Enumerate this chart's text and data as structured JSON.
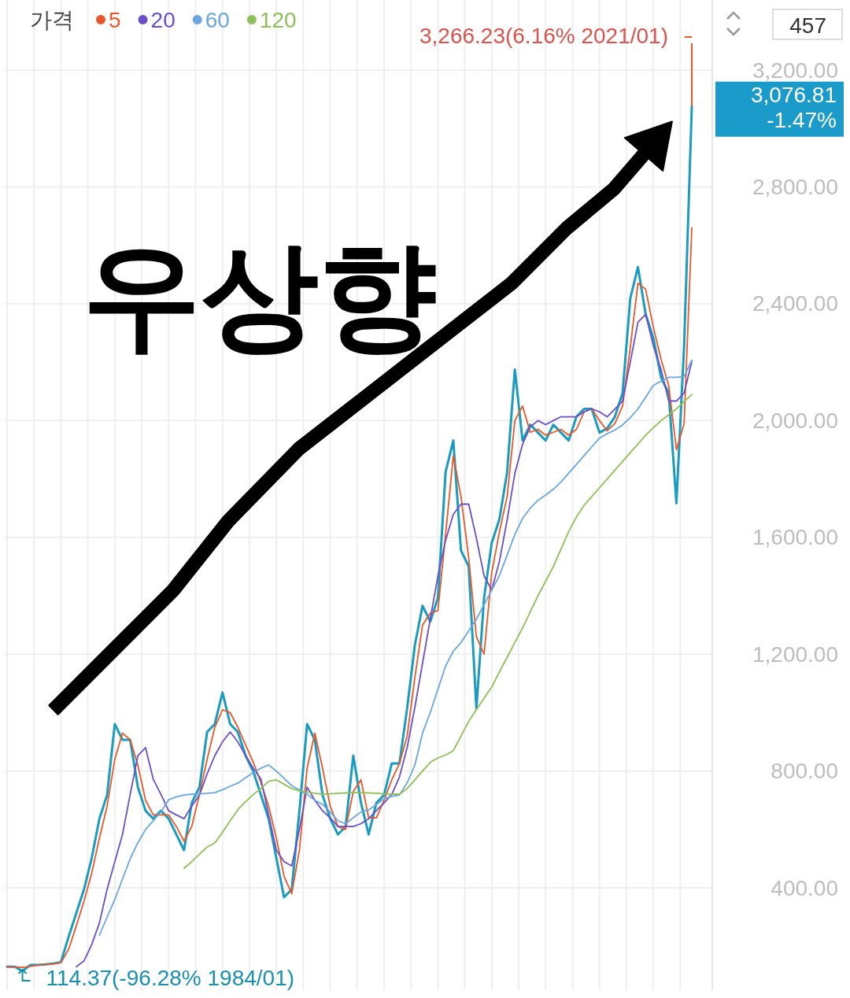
{
  "chart_data": {
    "type": "line",
    "legend_title": "가격",
    "categories": [
      null,
      null,
      null,
      null,
      null,
      null,
      null,
      null,
      null,
      null,
      null,
      null,
      null,
      null,
      null,
      null,
      null,
      null,
      null,
      null,
      null,
      null,
      null,
      null,
      null,
      null,
      null,
      null,
      null,
      null,
      null,
      null,
      null,
      null,
      null,
      null,
      null,
      null,
      null,
      null,
      null,
      null,
      null,
      null,
      null,
      null,
      null,
      null,
      null,
      null,
      null,
      null,
      null,
      null,
      null,
      null,
      null,
      null,
      null,
      null,
      null,
      null,
      null,
      null,
      null,
      null,
      null,
      null,
      null,
      null,
      null,
      null,
      null,
      null,
      null,
      null,
      null,
      null,
      null,
      null,
      null,
      null,
      null,
      null,
      null,
      null,
      null,
      null,
      null,
      null
    ],
    "series": [
      {
        "color": "#1b9bbd",
        "values": [
          130,
          130,
          115,
          136,
          136,
          138,
          141,
          146,
          233,
          314,
          395,
          502,
          637,
          718,
          961,
          907,
          907,
          745,
          664,
          637,
          664,
          637,
          583,
          529,
          691,
          745,
          934,
          961,
          1069,
          961,
          934,
          853,
          799,
          718,
          637,
          502,
          368,
          395,
          664,
          961,
          907,
          718,
          637,
          583,
          610,
          853,
          691,
          583,
          691,
          718,
          826,
          826,
          1015,
          1231,
          1366,
          1312,
          1393,
          1824,
          1932,
          1555,
          1501,
          1015,
          1393,
          1582,
          1663,
          1824,
          2175,
          1932,
          1986,
          1959,
          1932,
          1986,
          1959,
          1932,
          2013,
          2040,
          2040,
          1959,
          1973,
          2013,
          2094,
          2418,
          2526,
          2364,
          2283,
          2148,
          2094,
          1717,
          2256,
          3077
        ]
      },
      {
        "name": "5",
        "color": "#e8582a",
        "values": [
          130,
          130,
          128,
          131,
          136,
          137,
          140,
          144,
          190,
          270,
          355,
          450,
          570,
          680,
          840,
          930,
          907,
          820,
          700,
          650,
          650,
          650,
          610,
          560,
          610,
          720,
          840,
          950,
          1010,
          1000,
          950,
          890,
          830,
          760,
          680,
          570,
          440,
          380,
          530,
          810,
          930,
          810,
          680,
          610,
          600,
          730,
          770,
          640,
          640,
          700,
          770,
          826,
          920,
          1120,
          1300,
          1340,
          1350,
          1610,
          1880,
          1740,
          1530,
          1260,
          1200,
          1480,
          1620,
          1740,
          2000,
          2050,
          1960,
          1970,
          1950,
          1960,
          1970,
          1950,
          1970,
          2030,
          2040,
          2000,
          1965,
          1990,
          2050,
          2250,
          2470,
          2450,
          2320,
          2210,
          2120,
          1900,
          1990,
          2660
        ]
      },
      {
        "name": "20",
        "color": "#6a4fc9",
        "values": [
          null,
          null,
          null,
          null,
          null,
          null,
          null,
          null,
          null,
          130,
          150,
          206,
          280,
          395,
          490,
          583,
          720,
          853,
          880,
          772,
          720,
          664,
          650,
          637,
          680,
          718,
          790,
          853,
          900,
          934,
          900,
          853,
          810,
          772,
          650,
          529,
          490,
          475,
          600,
          745,
          700,
          664,
          640,
          610,
          610,
          610,
          620,
          637,
          665,
          691,
          720,
          780,
          880,
          1018,
          1169,
          1320,
          1468,
          1590,
          1679,
          1714,
          1714,
          1598,
          1468,
          1420,
          1519,
          1660,
          1819,
          1919,
          1978,
          2000,
          1986,
          2000,
          2013,
          2013,
          2013,
          2030,
          2040,
          2030,
          2013,
          2040,
          2067,
          2200,
          2337,
          2364,
          2256,
          2175,
          2067,
          2067,
          2094,
          2202
        ]
      },
      {
        "name": "60",
        "color": "#6aa6df",
        "values": [
          null,
          null,
          null,
          null,
          null,
          null,
          null,
          null,
          null,
          null,
          null,
          null,
          238,
          300,
          360,
          430,
          500,
          554,
          600,
          630,
          660,
          702,
          712,
          718,
          721,
          722,
          724,
          726,
          736,
          748,
          759,
          777,
          795,
          810,
          821,
          800,
          775,
          750,
          735,
          720,
          700,
          686,
          660,
          630,
          620,
          640,
          660,
          667,
          685,
          705,
          713,
          718,
          760,
          820,
          930,
          1000,
          1080,
          1160,
          1210,
          1240,
          1280,
          1320,
          1370,
          1420,
          1470,
          1540,
          1610,
          1665,
          1700,
          1727,
          1745,
          1765,
          1790,
          1820,
          1850,
          1880,
          1910,
          1940,
          1955,
          1968,
          1985,
          2010,
          2040,
          2080,
          2120,
          2135,
          2148,
          2148,
          2150,
          2207
        ]
      },
      {
        "name": "120",
        "color": "#8fbf5a",
        "values": [
          null,
          null,
          null,
          null,
          null,
          null,
          null,
          null,
          null,
          null,
          null,
          null,
          null,
          null,
          null,
          null,
          null,
          null,
          null,
          null,
          null,
          null,
          null,
          467,
          490,
          515,
          540,
          554,
          590,
          630,
          668,
          695,
          720,
          740,
          765,
          770,
          755,
          740,
          732,
          728,
          724,
          721,
          722,
          724,
          725,
          726,
          726,
          725,
          724,
          722,
          721,
          721,
          740,
          770,
          800,
          830,
          845,
          855,
          870,
          920,
          970,
          1010,
          1050,
          1088,
          1140,
          1190,
          1240,
          1290,
          1345,
          1400,
          1450,
          1500,
          1560,
          1620,
          1670,
          1710,
          1740,
          1770,
          1800,
          1830,
          1860,
          1890,
          1920,
          1950,
          1975,
          2000,
          2020,
          2040,
          2065,
          2089
        ]
      }
    ],
    "ylim": [
      50,
      3440
    ],
    "yticks": [
      {
        "value": 400,
        "label": "400.00"
      },
      {
        "value": 800,
        "label": "800.00"
      },
      {
        "value": 1200,
        "label": "1,200.00"
      },
      {
        "value": 1600,
        "label": "1,600.00"
      },
      {
        "value": 2000,
        "label": "2,000.00"
      },
      {
        "value": 2400,
        "label": "2,400.00"
      },
      {
        "value": 2800,
        "label": "2,800.00"
      },
      {
        "value": 3200,
        "label": "3,200.00"
      }
    ],
    "grid": true,
    "legend": "top left",
    "annotations": [
      "3,266.23(6.16% 2021/01)",
      "114.37(-96.28% 1984/01)",
      "3,076.81\n-1.47%",
      "457",
      "우상향"
    ]
  }
}
